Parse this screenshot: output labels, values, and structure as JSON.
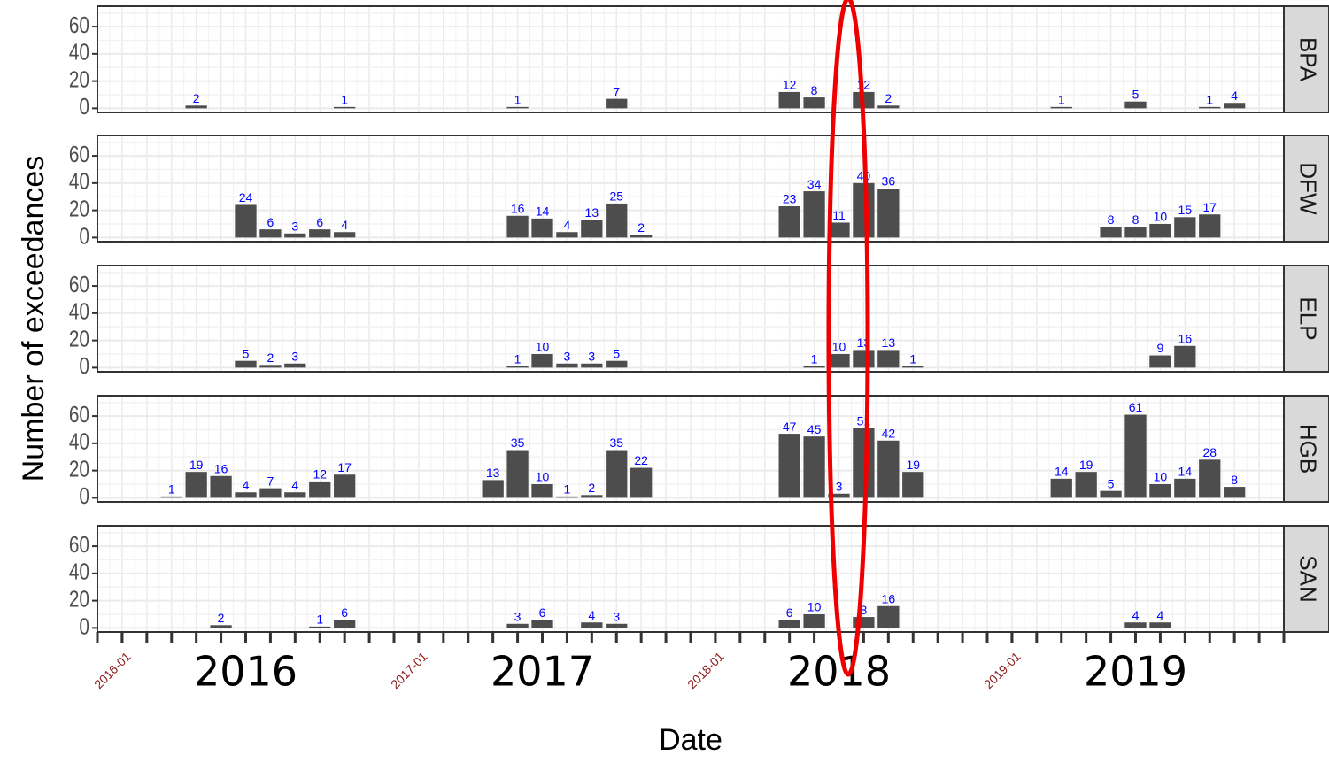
{
  "chart_data": {
    "type": "bar",
    "x_label": "Date",
    "y_label": "Number of exceedances",
    "xlim": [
      "2015-12",
      "2019-12"
    ],
    "xticks": [
      "2016-01",
      "2017-01",
      "2018-01",
      "2019-01"
    ],
    "year_ticks": [
      {
        "value": "2016-06",
        "label": "2016"
      },
      {
        "value": "2017-06",
        "label": "2017"
      },
      {
        "value": "2018-06",
        "label": "2018"
      },
      {
        "value": "2019-06",
        "label": "2019"
      }
    ],
    "ylim": [
      -3,
      75
    ],
    "yticks": [
      0,
      20,
      40,
      60
    ],
    "grid": true,
    "color": "#4d4d4d",
    "value_label_color": "#0000ff",
    "xtick_color": "#8b1a1a",
    "series": [
      {
        "name": "BPA",
        "x": [
          "2016-04",
          "2016-10",
          "2017-05",
          "2017-09",
          "2018-04",
          "2018-05",
          "2018-07",
          "2018-08",
          "2019-03",
          "2019-06",
          "2019-09",
          "2019-10"
        ],
        "values": [
          2,
          1,
          1,
          7,
          12,
          8,
          12,
          2,
          1,
          5,
          1,
          4
        ]
      },
      {
        "name": "DFW",
        "x": [
          "2016-06",
          "2016-07",
          "2016-08",
          "2016-09",
          "2016-10",
          "2017-05",
          "2017-06",
          "2017-07",
          "2017-08",
          "2017-09",
          "2017-10",
          "2018-04",
          "2018-05",
          "2018-06",
          "2018-07",
          "2018-08",
          "2019-05",
          "2019-06",
          "2019-07",
          "2019-08",
          "2019-09"
        ],
        "values": [
          24,
          6,
          3,
          6,
          4,
          16,
          14,
          4,
          13,
          25,
          2,
          23,
          34,
          11,
          40,
          36,
          8,
          8,
          10,
          15,
          17
        ]
      },
      {
        "name": "ELP",
        "x": [
          "2016-06",
          "2016-07",
          "2016-08",
          "2017-05",
          "2017-06",
          "2017-07",
          "2017-08",
          "2017-09",
          "2018-05",
          "2018-06",
          "2018-07",
          "2018-08",
          "2018-09",
          "2019-07",
          "2019-08"
        ],
        "values": [
          5,
          2,
          3,
          1,
          10,
          3,
          3,
          5,
          1,
          10,
          13,
          13,
          1,
          9,
          16
        ]
      },
      {
        "name": "HGB",
        "x": [
          "2016-03",
          "2016-04",
          "2016-05",
          "2016-06",
          "2016-07",
          "2016-08",
          "2016-09",
          "2016-10",
          "2017-04",
          "2017-05",
          "2017-06",
          "2017-07",
          "2017-08",
          "2017-09",
          "2017-10",
          "2018-04",
          "2018-05",
          "2018-06",
          "2018-07",
          "2018-08",
          "2018-09",
          "2019-03",
          "2019-04",
          "2019-05",
          "2019-06",
          "2019-07",
          "2019-08",
          "2019-09",
          "2019-10"
        ],
        "values": [
          1,
          19,
          16,
          4,
          7,
          4,
          12,
          17,
          13,
          35,
          10,
          1,
          2,
          35,
          22,
          47,
          45,
          3,
          51,
          42,
          19,
          14,
          19,
          5,
          61,
          10,
          14,
          28,
          8
        ]
      },
      {
        "name": "SAN",
        "x": [
          "2016-05",
          "2016-09",
          "2016-10",
          "2017-05",
          "2017-06",
          "2017-08",
          "2017-09",
          "2018-04",
          "2018-05",
          "2018-07",
          "2018-08",
          "2019-06",
          "2019-07"
        ],
        "values": [
          2,
          1,
          6,
          3,
          6,
          4,
          3,
          6,
          10,
          8,
          16,
          4,
          4
        ]
      }
    ]
  }
}
